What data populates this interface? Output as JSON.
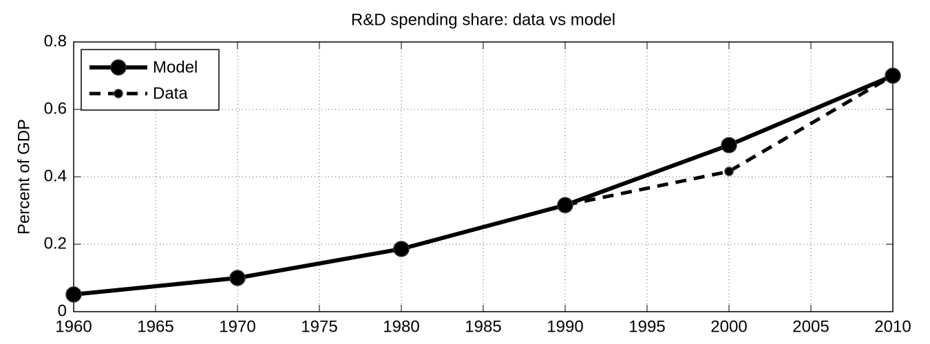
{
  "chart_data": {
    "type": "line",
    "title": "R&D spending share: data vs model",
    "ylabel": "Percent of GDP",
    "x": [
      1960,
      1970,
      1980,
      1990,
      2000,
      2010
    ],
    "series": [
      {
        "name": "Model",
        "color": "#000000",
        "style": "solid",
        "marker": "large",
        "values": [
          0.051,
          0.1,
          0.186,
          0.316,
          0.494,
          0.7
        ]
      },
      {
        "name": "Data",
        "color": "#000000",
        "style": "dashed",
        "marker": "small",
        "values": [
          0.051,
          0.1,
          0.186,
          0.316,
          0.416,
          0.7
        ]
      }
    ],
    "xlim": [
      1960,
      2010
    ],
    "xticks": [
      1960,
      1965,
      1970,
      1975,
      1980,
      1985,
      1990,
      1995,
      2000,
      2005,
      2010
    ],
    "ylim": [
      0,
      0.8
    ],
    "yticks": [
      0,
      0.2,
      0.4,
      0.6,
      0.8
    ],
    "grid": true,
    "legend": "upper left"
  }
}
